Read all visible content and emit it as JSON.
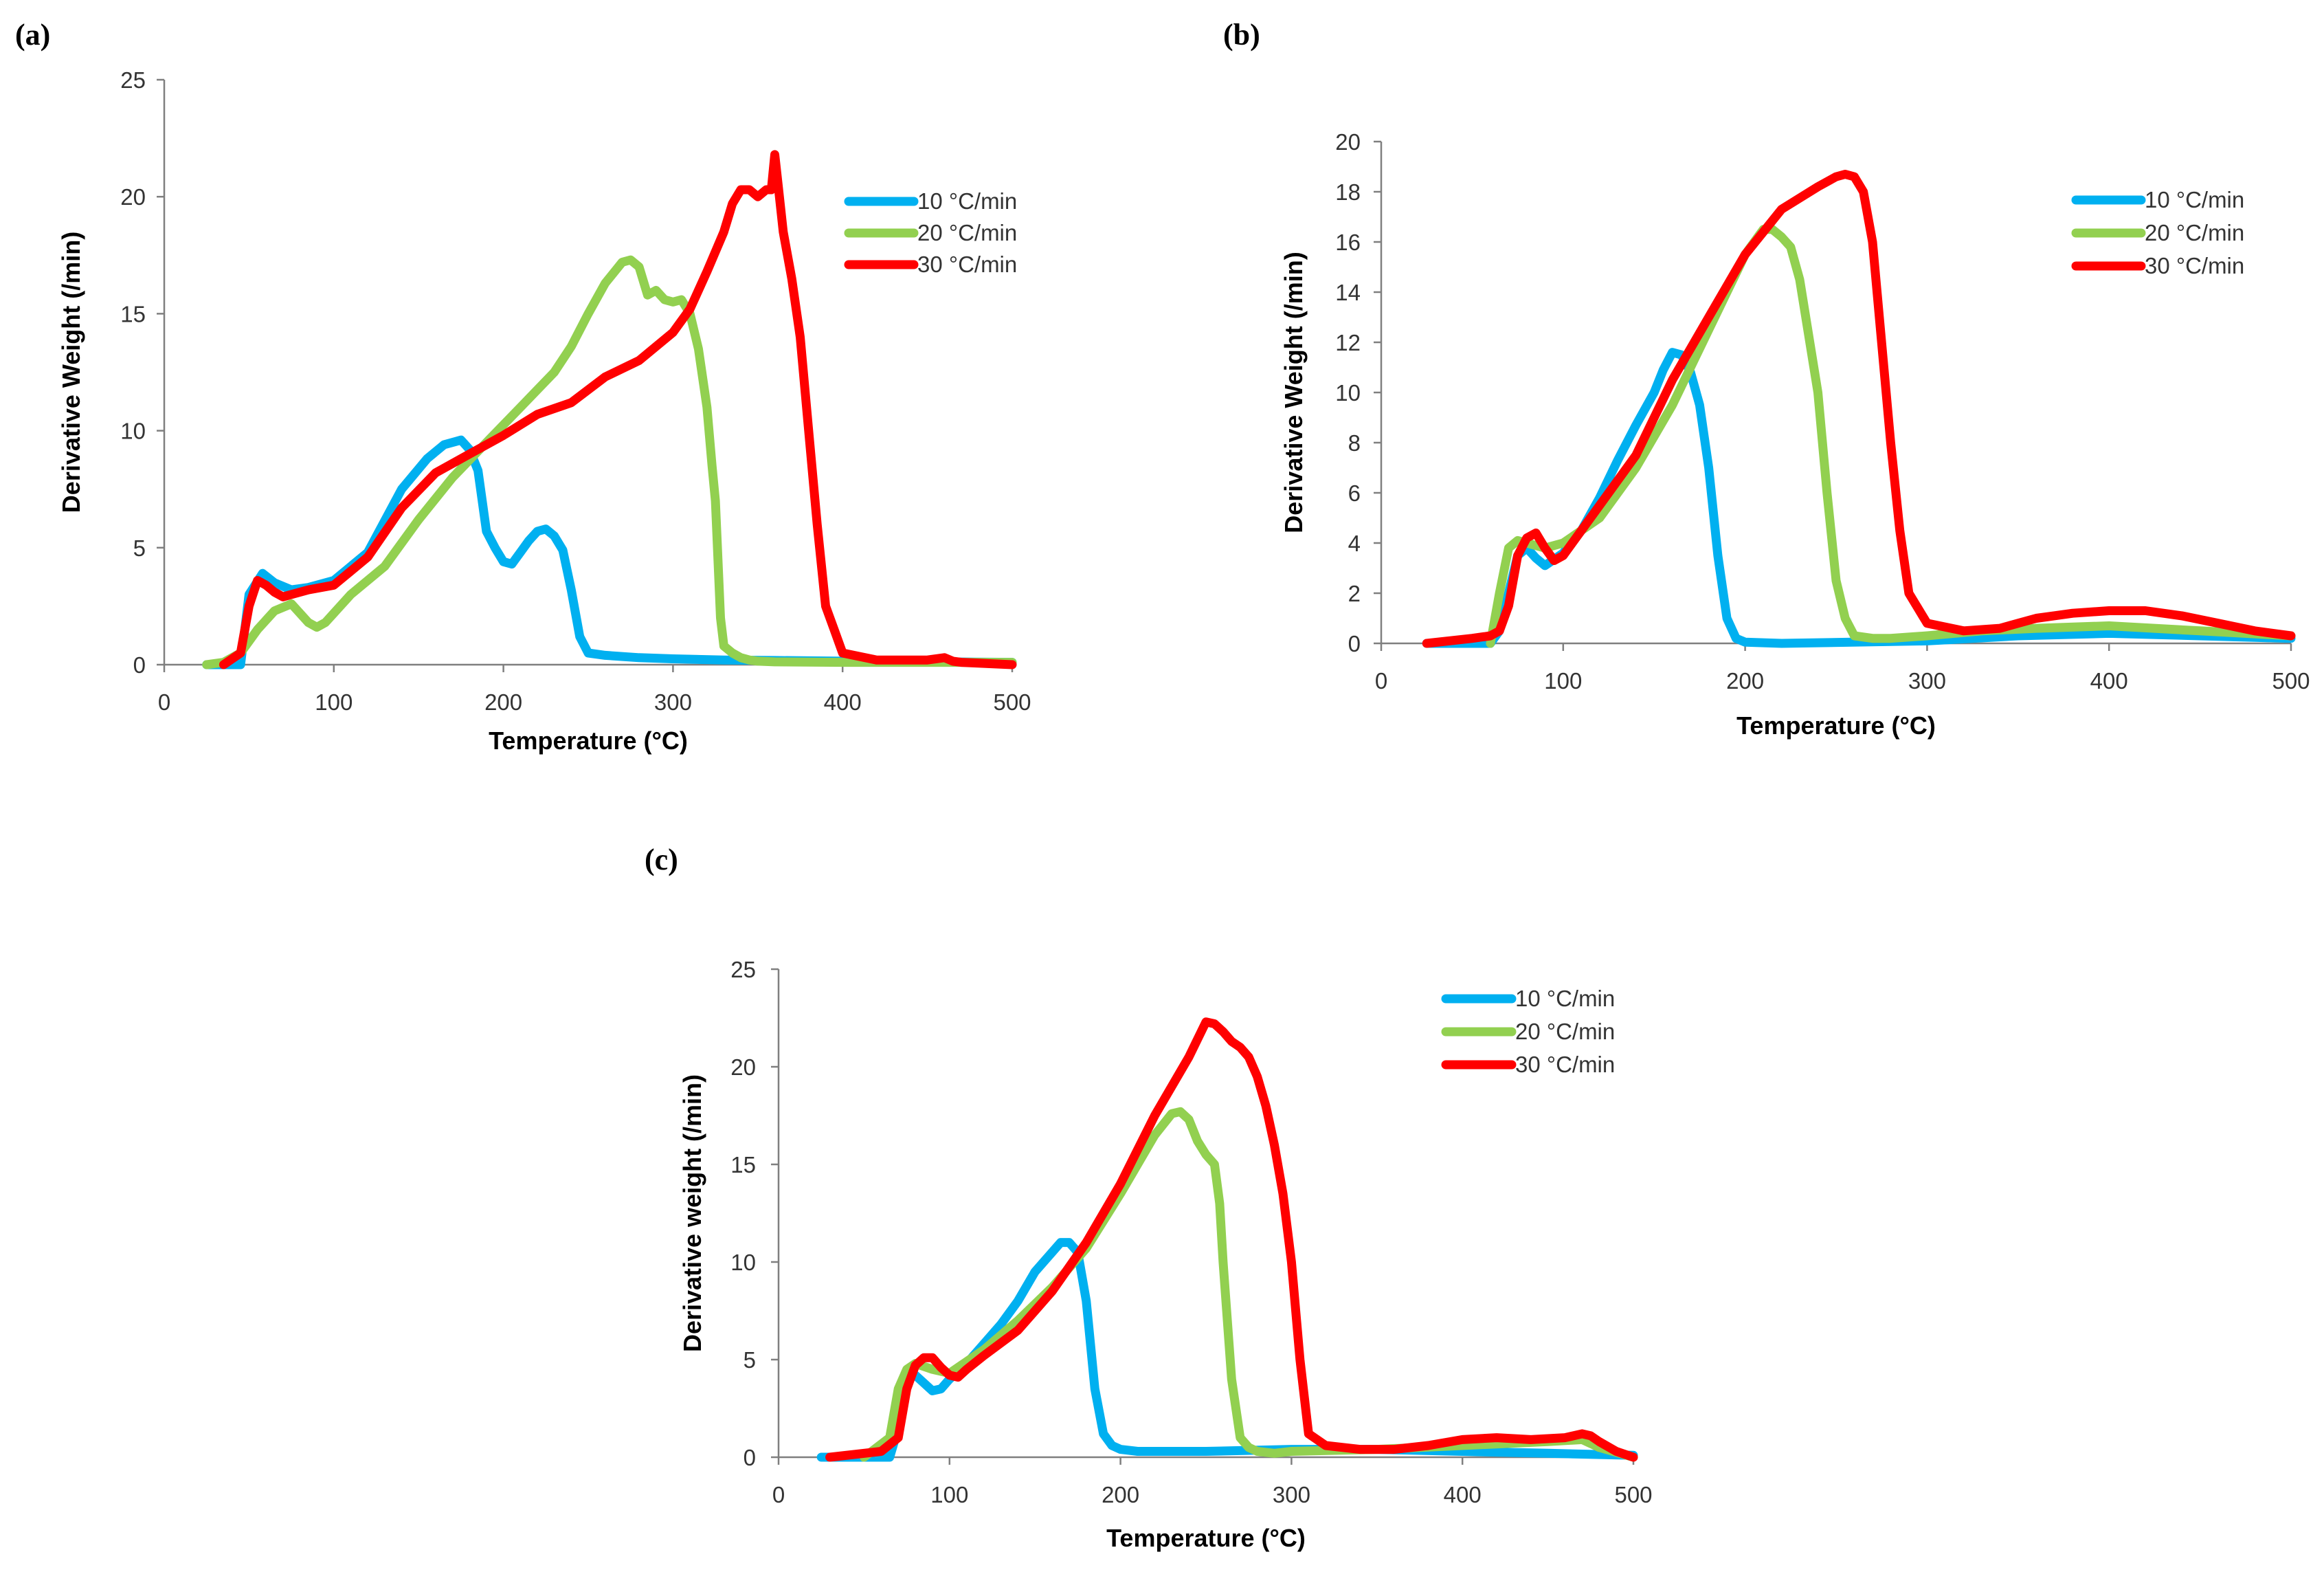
{
  "chart_data": [
    {
      "panel_label": "(a)",
      "type": "line",
      "xlabel": "Temperature (°C)",
      "ylabel": "Derivative Weight (/min)",
      "xlim": [
        0,
        500
      ],
      "ylim": [
        0,
        25
      ],
      "xticks": [
        0,
        100,
        200,
        300,
        400,
        500
      ],
      "yticks": [
        0,
        5,
        10,
        15,
        20,
        25
      ],
      "grid": false,
      "legend_position": "top-right",
      "series": [
        {
          "name": "10 °C/min",
          "color": "#00b0f0",
          "x": [
            25,
            45,
            50,
            58,
            65,
            75,
            85,
            100,
            120,
            140,
            155,
            165,
            175,
            180,
            185,
            190,
            195,
            200,
            205,
            210,
            215,
            220,
            225,
            230,
            235,
            240,
            245,
            250,
            260,
            280,
            300,
            330,
            360,
            400,
            450,
            500
          ],
          "y": [
            0,
            0,
            3,
            3.9,
            3.5,
            3.2,
            3.3,
            3.6,
            4.8,
            7.5,
            8.8,
            9.4,
            9.6,
            9.2,
            8.3,
            5.7,
            5,
            4.4,
            4.3,
            4.8,
            5.3,
            5.7,
            5.8,
            5.5,
            4.9,
            3.2,
            1.2,
            0.5,
            0.4,
            0.3,
            0.25,
            0.2,
            0.18,
            0.15,
            0.12,
            0.1
          ]
        },
        {
          "name": "20 °C/min",
          "color": "#92d050",
          "x": [
            25,
            35,
            45,
            55,
            65,
            75,
            85,
            90,
            95,
            100,
            110,
            130,
            150,
            170,
            190,
            210,
            230,
            240,
            250,
            260,
            270,
            275,
            280,
            285,
            290,
            295,
            300,
            305,
            310,
            315,
            320,
            323,
            325,
            328,
            330,
            335,
            340,
            345,
            350,
            360,
            400,
            450,
            500
          ],
          "y": [
            0,
            0.1,
            0.5,
            1.5,
            2.3,
            2.6,
            1.8,
            1.6,
            1.8,
            2.2,
            3,
            4.2,
            6.2,
            8,
            9.5,
            11,
            12.5,
            13.6,
            15,
            16.3,
            17.2,
            17.3,
            17,
            15.8,
            16,
            15.6,
            15.5,
            15.6,
            15,
            13.5,
            11,
            8.5,
            7,
            2,
            0.8,
            0.5,
            0.3,
            0.2,
            0.15,
            0.12,
            0.1,
            0.1,
            0.1
          ]
        },
        {
          "name": "30 °C/min",
          "color": "#ff0000",
          "x": [
            35,
            45,
            50,
            55,
            60,
            65,
            70,
            75,
            85,
            100,
            120,
            140,
            160,
            180,
            200,
            220,
            240,
            260,
            280,
            300,
            310,
            320,
            330,
            335,
            340,
            345,
            350,
            355,
            358,
            360,
            362,
            365,
            370,
            375,
            380,
            385,
            390,
            395,
            400,
            420,
            450,
            460,
            465,
            470,
            500
          ],
          "y": [
            0,
            0.5,
            2.5,
            3.6,
            3.4,
            3.1,
            2.9,
            3,
            3.2,
            3.4,
            4.6,
            6.7,
            8.2,
            9,
            9.8,
            10.7,
            11.2,
            12.3,
            13,
            14.2,
            15.2,
            16.8,
            18.5,
            19.7,
            20.3,
            20.3,
            20,
            20.3,
            20.3,
            21.8,
            20.5,
            18.5,
            16.5,
            14,
            10,
            6,
            2.5,
            1.5,
            0.5,
            0.2,
            0.2,
            0.3,
            0.15,
            0.1,
            0
          ]
        }
      ]
    },
    {
      "panel_label": "(b)",
      "type": "line",
      "xlabel": "Temperature (°C)",
      "ylabel": "Derivative Weight (/min)",
      "xlim": [
        0,
        500
      ],
      "ylim": [
        0,
        20
      ],
      "xticks": [
        0,
        100,
        200,
        300,
        400,
        500
      ],
      "yticks": [
        0,
        2,
        4,
        6,
        8,
        10,
        12,
        14,
        16,
        18,
        20
      ],
      "grid": false,
      "legend_position": "top-right",
      "series": [
        {
          "name": "10 °C/min",
          "color": "#00b0f0",
          "x": [
            25,
            60,
            65,
            70,
            75,
            80,
            85,
            90,
            100,
            110,
            120,
            130,
            140,
            150,
            155,
            160,
            165,
            170,
            175,
            180,
            185,
            190,
            195,
            200,
            220,
            300,
            350,
            400,
            450,
            500
          ],
          "y": [
            0,
            0,
            0.5,
            2,
            3.5,
            3.8,
            3.4,
            3.1,
            3.6,
            4.5,
            5.8,
            7.3,
            8.7,
            10,
            10.9,
            11.6,
            11.5,
            10.8,
            9.5,
            7,
            3.5,
            1,
            0.2,
            0.05,
            0,
            0.1,
            0.3,
            0.4,
            0.3,
            0.2
          ]
        },
        {
          "name": "20 °C/min",
          "color": "#92d050",
          "x": [
            60,
            65,
            70,
            75,
            80,
            90,
            100,
            120,
            140,
            160,
            180,
            200,
            210,
            215,
            220,
            225,
            230,
            240,
            245,
            250,
            255,
            260,
            270,
            280,
            300,
            330,
            360,
            400,
            450,
            500
          ],
          "y": [
            0,
            2,
            3.8,
            4.1,
            4,
            3.8,
            4,
            5,
            7,
            9.5,
            12.5,
            15.5,
            16.5,
            16.5,
            16.2,
            15.8,
            14.5,
            10,
            6,
            2.5,
            1,
            0.3,
            0.2,
            0.2,
            0.3,
            0.5,
            0.6,
            0.7,
            0.5,
            0.3
          ]
        },
        {
          "name": "30 °C/min",
          "color": "#ff0000",
          "x": [
            25,
            50,
            60,
            65,
            70,
            75,
            80,
            85,
            90,
            95,
            100,
            110,
            120,
            140,
            160,
            180,
            200,
            220,
            240,
            250,
            255,
            260,
            265,
            270,
            275,
            280,
            285,
            290,
            300,
            320,
            340,
            355,
            360,
            380,
            400,
            420,
            440,
            460,
            480,
            500
          ],
          "y": [
            0,
            0.2,
            0.3,
            0.5,
            1.5,
            3.5,
            4.2,
            4.4,
            3.8,
            3.3,
            3.5,
            4.5,
            5.5,
            7.5,
            10.5,
            13,
            15.5,
            17.3,
            18.2,
            18.6,
            18.7,
            18.6,
            18,
            16,
            12,
            8,
            4.5,
            2,
            0.8,
            0.5,
            0.6,
            0.9,
            1,
            1.2,
            1.3,
            1.3,
            1.1,
            0.8,
            0.5,
            0.3
          ]
        }
      ]
    },
    {
      "panel_label": "(c)",
      "type": "line",
      "xlabel": "Temperature (°C)",
      "ylabel": "Derivative weight (/min)",
      "xlim": [
        0,
        500
      ],
      "ylim": [
        0,
        25
      ],
      "xticks": [
        0,
        100,
        200,
        300,
        400,
        500
      ],
      "yticks": [
        0,
        5,
        10,
        15,
        20,
        25
      ],
      "grid": false,
      "legend_position": "top-right",
      "series": [
        {
          "name": "10 °C/min",
          "color": "#00b0f0",
          "x": [
            25,
            65,
            70,
            75,
            80,
            85,
            90,
            95,
            100,
            110,
            120,
            130,
            140,
            150,
            160,
            165,
            170,
            175,
            180,
            185,
            190,
            195,
            200,
            210,
            250,
            300,
            350,
            400,
            450,
            500
          ],
          "y": [
            0,
            0,
            1.5,
            4,
            4.2,
            3.8,
            3.4,
            3.5,
            4,
            4.8,
            5.8,
            6.8,
            8,
            9.5,
            10.5,
            11,
            11,
            10.5,
            8,
            3.5,
            1.2,
            0.6,
            0.4,
            0.3,
            0.3,
            0.4,
            0.4,
            0.3,
            0.2,
            0.1
          ]
        },
        {
          "name": "20 °C/min",
          "color": "#92d050",
          "x": [
            50,
            65,
            70,
            75,
            80,
            90,
            100,
            120,
            140,
            160,
            180,
            200,
            220,
            230,
            235,
            240,
            245,
            250,
            255,
            258,
            260,
            265,
            270,
            275,
            280,
            290,
            300,
            350,
            400,
            450,
            470,
            480,
            500
          ],
          "y": [
            0,
            1,
            3.5,
            4.5,
            4.8,
            4.5,
            4.3,
            5.5,
            7,
            8.7,
            10.7,
            13.5,
            16.5,
            17.6,
            17.7,
            17.3,
            16.2,
            15.5,
            15,
            13,
            10,
            4,
            1,
            0.5,
            0.3,
            0.2,
            0.3,
            0.4,
            0.6,
            0.8,
            0.9,
            0.5,
            0
          ]
        },
        {
          "name": "30 °C/min",
          "color": "#ff0000",
          "x": [
            30,
            60,
            70,
            75,
            80,
            85,
            90,
            95,
            100,
            105,
            110,
            120,
            140,
            160,
            180,
            200,
            220,
            240,
            250,
            255,
            260,
            265,
            270,
            275,
            280,
            285,
            290,
            295,
            300,
            305,
            310,
            320,
            340,
            360,
            380,
            400,
            420,
            440,
            460,
            470,
            475,
            480,
            490,
            500
          ],
          "y": [
            0,
            0.3,
            1,
            3.5,
            4.7,
            5.1,
            5.1,
            4.6,
            4.2,
            4.1,
            4.5,
            5.2,
            6.5,
            8.5,
            11,
            14,
            17.5,
            20.5,
            22.3,
            22.2,
            21.8,
            21.3,
            21,
            20.5,
            19.5,
            18,
            16,
            13.5,
            10,
            5,
            1.2,
            0.6,
            0.4,
            0.4,
            0.6,
            0.9,
            1,
            0.9,
            1,
            1.2,
            1.1,
            0.8,
            0.3,
            0
          ]
        }
      ]
    }
  ]
}
